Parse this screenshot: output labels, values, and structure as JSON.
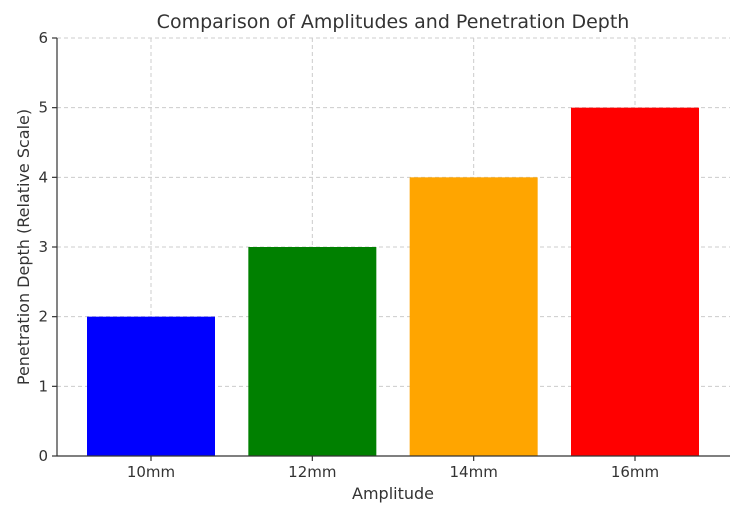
{
  "chart_data": {
    "type": "bar",
    "title": "Comparison of Amplitudes and Penetration Depth",
    "xlabel": "Amplitude",
    "ylabel": "Penetration Depth (Relative Scale)",
    "categories": [
      "10mm",
      "12mm",
      "14mm",
      "16mm"
    ],
    "values": [
      2,
      3,
      4,
      5
    ],
    "colors": [
      "#0000ff",
      "#008000",
      "#ffa500",
      "#ff0000"
    ],
    "ylim": [
      0,
      6
    ],
    "yticks": [
      0,
      1,
      2,
      3,
      4,
      5,
      6
    ],
    "grid": true
  }
}
